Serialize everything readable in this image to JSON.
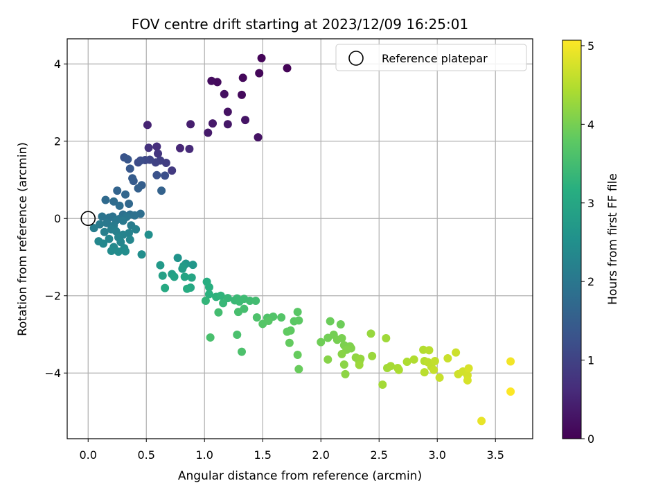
{
  "chart_data": {
    "type": "scatter",
    "title": "FOV centre drift starting at 2023/12/09 16:25:01",
    "xlabel": "Angular distance from reference (arcmin)",
    "ylabel": "Rotation from reference (arcmin)",
    "xlim": [
      -0.18,
      3.82
    ],
    "ylim": [
      -5.7,
      4.65
    ],
    "xticks": [
      0.0,
      0.5,
      1.0,
      1.5,
      2.0,
      2.5,
      3.0,
      3.5
    ],
    "xtick_labels": [
      "0.0",
      "0.5",
      "1.0",
      "1.5",
      "2.0",
      "2.5",
      "3.0",
      "3.5"
    ],
    "yticks": [
      -4,
      -2,
      0,
      2,
      4
    ],
    "ytick_labels": [
      "−4",
      "−2",
      "0",
      "2",
      "4"
    ],
    "grid": true,
    "legend": {
      "location": "top-right",
      "entries": [
        "Reference platepar"
      ]
    },
    "reference_point": {
      "x": 0.0,
      "y": 0.0
    },
    "colorbar": {
      "label": "Hours from first FF file",
      "colormap": "viridis",
      "range": [
        0,
        5.07
      ],
      "ticks": [
        0,
        1,
        2,
        3,
        4,
        5
      ],
      "tick_labels": [
        "0",
        "1",
        "2",
        "3",
        "4",
        "5"
      ]
    },
    "points": [
      [
        1.71,
        3.89,
        0.05
      ],
      [
        1.49,
        4.15,
        0.06
      ],
      [
        1.47,
        3.76,
        0.08
      ],
      [
        1.33,
        3.64,
        0.1
      ],
      [
        1.32,
        3.2,
        0.13
      ],
      [
        1.11,
        3.53,
        0.15
      ],
      [
        1.06,
        3.56,
        0.18
      ],
      [
        1.17,
        3.22,
        0.21
      ],
      [
        1.2,
        2.76,
        0.24
      ],
      [
        1.46,
        2.1,
        0.26
      ],
      [
        1.35,
        2.55,
        0.28
      ],
      [
        1.2,
        2.44,
        0.31
      ],
      [
        1.07,
        2.46,
        0.34
      ],
      [
        1.03,
        2.22,
        0.37
      ],
      [
        0.88,
        2.44,
        0.42
      ],
      [
        0.51,
        2.42,
        0.5
      ],
      [
        0.79,
        1.82,
        0.55
      ],
      [
        0.87,
        1.8,
        0.6
      ],
      [
        0.59,
        1.86,
        0.66
      ],
      [
        0.52,
        1.83,
        0.72
      ],
      [
        0.6,
        1.68,
        0.78
      ],
      [
        0.72,
        1.24,
        0.85
      ],
      [
        0.67,
        1.44,
        0.9
      ],
      [
        0.62,
        1.5,
        0.95
      ],
      [
        0.58,
        1.45,
        1.0
      ],
      [
        0.53,
        1.52,
        1.05
      ],
      [
        0.49,
        1.51,
        1.1
      ],
      [
        0.43,
        1.45,
        1.15
      ],
      [
        0.45,
        1.5,
        1.18
      ],
      [
        0.66,
        1.11,
        1.22
      ],
      [
        0.59,
        1.12,
        1.26
      ],
      [
        0.31,
        1.58,
        1.3
      ],
      [
        0.34,
        1.53,
        1.34
      ],
      [
        0.36,
        1.29,
        1.38
      ],
      [
        0.39,
        0.97,
        1.42
      ],
      [
        0.38,
        1.04,
        1.46
      ],
      [
        0.46,
        0.86,
        1.5
      ],
      [
        0.43,
        0.78,
        1.54
      ],
      [
        0.63,
        0.72,
        1.58
      ],
      [
        0.25,
        0.72,
        1.62
      ],
      [
        0.32,
        0.62,
        1.66
      ],
      [
        0.35,
        0.38,
        1.7
      ],
      [
        0.15,
        0.48,
        1.74
      ],
      [
        0.22,
        0.44,
        1.78
      ],
      [
        0.27,
        0.33,
        1.8
      ],
      [
        0.45,
        0.12,
        1.82
      ],
      [
        0.36,
        0.1,
        1.84
      ],
      [
        0.3,
        0.1,
        1.86
      ],
      [
        0.4,
        0.08,
        1.88
      ],
      [
        0.21,
        0.05,
        1.9
      ],
      [
        0.18,
        0.02,
        1.92
      ],
      [
        0.12,
        0.05,
        1.94
      ],
      [
        0.27,
        -0.01,
        1.96
      ],
      [
        0.33,
        0.04,
        1.98
      ],
      [
        0.24,
        -0.05,
        2.0
      ],
      [
        0.16,
        -0.12,
        2.02
      ],
      [
        0.3,
        -0.06,
        2.04
      ],
      [
        0.1,
        -0.15,
        2.06
      ],
      [
        0.22,
        -0.18,
        2.08
      ],
      [
        0.37,
        -0.18,
        2.1
      ],
      [
        0.05,
        -0.25,
        2.12
      ],
      [
        0.2,
        -0.28,
        2.14
      ],
      [
        0.14,
        -0.35,
        2.16
      ],
      [
        0.24,
        -0.33,
        2.18
      ],
      [
        0.41,
        -0.28,
        2.2
      ],
      [
        0.35,
        -0.38,
        2.22
      ],
      [
        0.3,
        -0.42,
        2.24
      ],
      [
        0.26,
        -0.49,
        2.26
      ],
      [
        0.18,
        -0.53,
        2.28
      ],
      [
        0.36,
        -0.55,
        2.3
      ],
      [
        0.28,
        -0.61,
        2.32
      ],
      [
        0.09,
        -0.59,
        2.34
      ],
      [
        0.13,
        -0.65,
        2.36
      ],
      [
        0.22,
        -0.74,
        2.38
      ],
      [
        0.31,
        -0.77,
        2.4
      ],
      [
        0.2,
        -0.84,
        2.42
      ],
      [
        0.26,
        -0.86,
        2.44
      ],
      [
        0.32,
        -0.85,
        2.46
      ],
      [
        0.46,
        -0.93,
        2.48
      ],
      [
        0.52,
        -0.42,
        2.5
      ],
      [
        0.77,
        -1.02,
        2.58
      ],
      [
        0.84,
        -1.17,
        2.62
      ],
      [
        0.9,
        -1.2,
        2.66
      ],
      [
        0.62,
        -1.21,
        2.7
      ],
      [
        0.82,
        -1.23,
        2.74
      ],
      [
        0.81,
        -1.3,
        2.78
      ],
      [
        0.72,
        -1.44,
        2.82
      ],
      [
        0.64,
        -1.48,
        2.86
      ],
      [
        0.74,
        -1.51,
        2.9
      ],
      [
        0.83,
        -1.51,
        2.94
      ],
      [
        0.89,
        -1.53,
        2.98
      ],
      [
        0.88,
        -1.79,
        3.02
      ],
      [
        0.66,
        -1.8,
        3.06
      ],
      [
        0.85,
        -1.82,
        3.1
      ],
      [
        1.02,
        -1.64,
        3.14
      ],
      [
        1.04,
        -1.78,
        3.18
      ],
      [
        1.04,
        -1.96,
        3.22
      ],
      [
        1.1,
        -2.03,
        3.25
      ],
      [
        1.14,
        -2.0,
        3.28
      ],
      [
        1.01,
        -2.13,
        3.31
      ],
      [
        1.2,
        -2.06,
        3.34
      ],
      [
        1.16,
        -2.19,
        3.36
      ],
      [
        1.26,
        -2.12,
        3.38
      ],
      [
        1.28,
        -2.07,
        3.4
      ],
      [
        1.3,
        -2.15,
        3.42
      ],
      [
        1.34,
        -2.08,
        3.44
      ],
      [
        1.39,
        -2.13,
        3.46
      ],
      [
        1.44,
        -2.13,
        3.48
      ],
      [
        1.12,
        -2.43,
        3.5
      ],
      [
        1.34,
        -2.34,
        3.52
      ],
      [
        1.29,
        -2.42,
        3.54
      ],
      [
        1.05,
        -3.08,
        3.56
      ],
      [
        1.28,
        -3.01,
        3.58
      ],
      [
        1.32,
        -3.45,
        3.6
      ],
      [
        1.45,
        -2.56,
        3.62
      ],
      [
        1.54,
        -2.57,
        3.64
      ],
      [
        1.59,
        -2.54,
        3.66
      ],
      [
        1.66,
        -2.56,
        3.68
      ],
      [
        1.5,
        -2.73,
        3.7
      ],
      [
        1.55,
        -2.65,
        3.72
      ],
      [
        1.8,
        -2.42,
        3.74
      ],
      [
        1.77,
        -2.66,
        3.76
      ],
      [
        1.81,
        -2.64,
        3.78
      ],
      [
        1.74,
        -2.9,
        3.8
      ],
      [
        1.71,
        -2.93,
        3.82
      ],
      [
        1.73,
        -3.22,
        3.84
      ],
      [
        1.8,
        -3.53,
        3.86
      ],
      [
        1.81,
        -3.9,
        3.88
      ],
      [
        2.08,
        -2.66,
        3.9
      ],
      [
        2.17,
        -2.74,
        3.92
      ],
      [
        2.0,
        -3.2,
        3.94
      ],
      [
        2.06,
        -3.09,
        3.96
      ],
      [
        2.11,
        -3.01,
        3.98
      ],
      [
        2.14,
        -3.14,
        4.0
      ],
      [
        2.18,
        -3.1,
        4.02
      ],
      [
        2.2,
        -3.28,
        4.04
      ],
      [
        2.25,
        -3.31,
        4.06
      ],
      [
        2.26,
        -3.36,
        4.08
      ],
      [
        2.22,
        -3.4,
        4.1
      ],
      [
        2.06,
        -3.65,
        4.12
      ],
      [
        2.18,
        -3.51,
        4.14
      ],
      [
        2.2,
        -3.78,
        4.16
      ],
      [
        2.21,
        -4.03,
        4.18
      ],
      [
        2.3,
        -3.6,
        4.2
      ],
      [
        2.33,
        -3.71,
        4.22
      ],
      [
        2.34,
        -3.63,
        4.24
      ],
      [
        2.43,
        -2.98,
        4.26
      ],
      [
        2.44,
        -3.56,
        4.28
      ],
      [
        2.33,
        -3.79,
        4.3
      ],
      [
        2.56,
        -3.1,
        4.32
      ],
      [
        2.57,
        -3.87,
        4.34
      ],
      [
        2.53,
        -4.3,
        4.36
      ],
      [
        2.6,
        -3.82,
        4.38
      ],
      [
        2.66,
        -3.87,
        4.4
      ],
      [
        2.67,
        -3.92,
        4.42
      ],
      [
        2.74,
        -3.71,
        4.44
      ],
      [
        2.8,
        -3.65,
        4.46
      ],
      [
        2.88,
        -3.4,
        4.48
      ],
      [
        2.89,
        -3.69,
        4.5
      ],
      [
        2.93,
        -3.41,
        4.52
      ],
      [
        2.89,
        -3.98,
        4.54
      ],
      [
        2.92,
        -3.72,
        4.56
      ],
      [
        2.95,
        -3.84,
        4.58
      ],
      [
        2.98,
        -3.69,
        4.6
      ],
      [
        2.97,
        -3.92,
        4.62
      ],
      [
        3.02,
        -4.12,
        4.64
      ],
      [
        3.09,
        -3.62,
        4.66
      ],
      [
        3.16,
        -3.47,
        4.68
      ],
      [
        3.18,
        -4.03,
        4.7
      ],
      [
        3.22,
        -3.96,
        4.72
      ],
      [
        3.26,
        -4.06,
        4.74
      ],
      [
        3.26,
        -4.19,
        4.76
      ],
      [
        3.27,
        -3.88,
        4.78
      ],
      [
        3.38,
        -5.24,
        4.9
      ],
      [
        3.63,
        -3.7,
        4.98
      ],
      [
        3.63,
        -4.48,
        5.06
      ]
    ]
  }
}
